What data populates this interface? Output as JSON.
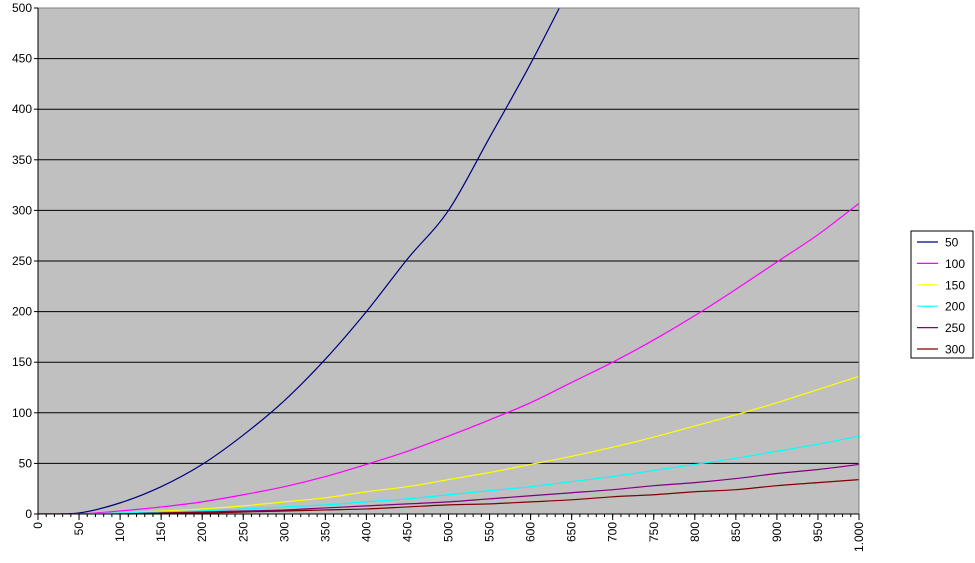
{
  "chart_data": {
    "type": "line",
    "title": "",
    "xlabel": "",
    "ylabel": "",
    "xlim": [
      0,
      1000
    ],
    "ylim": [
      0,
      500
    ],
    "y_ticks": [
      0,
      50,
      100,
      150,
      200,
      250,
      300,
      350,
      400,
      450,
      500
    ],
    "y_tick_labels": [
      "0",
      "50",
      "100",
      "150",
      "200",
      "250",
      "300",
      "350",
      "400",
      "450",
      "500"
    ],
    "x_ticks": [
      0,
      50,
      100,
      150,
      200,
      250,
      300,
      350,
      400,
      450,
      500,
      550,
      600,
      650,
      700,
      750,
      800,
      850,
      900,
      950,
      1000
    ],
    "x_tick_labels": [
      "0",
      "50",
      "100",
      "150",
      "200",
      "250",
      "300",
      "350",
      "400",
      "450",
      "500",
      "550",
      "600",
      "650",
      "700",
      "750",
      "800",
      "850",
      "900",
      "950",
      "1.000"
    ],
    "x_minor_step": 10,
    "grid": "horizontal major gridlines",
    "plot_background": "#c0c0c0",
    "legend_position": "right",
    "x": [
      0,
      50,
      100,
      150,
      200,
      250,
      300,
      350,
      400,
      450,
      500,
      550,
      600,
      650,
      700,
      750,
      800,
      850,
      900,
      950,
      1000
    ],
    "series": [
      {
        "name": "50",
        "color": "#000080",
        "values": [
          0,
          1,
          11,
          27,
          49,
          78,
          112,
          153,
          200,
          252,
          300,
          372,
          445,
          524,
          null,
          null,
          null,
          null,
          null,
          null,
          null
        ]
      },
      {
        "name": "100",
        "color": "#ff00ff",
        "values": [
          0,
          0,
          3,
          7,
          12,
          19,
          27,
          37,
          49,
          62,
          77,
          93,
          110,
          130,
          150,
          172,
          196,
          222,
          249,
          276,
          307
        ]
      },
      {
        "name": "150",
        "color": "#ffff00",
        "values": [
          0,
          0,
          1,
          3,
          5,
          8,
          12,
          16,
          22,
          27,
          34,
          41,
          49,
          57,
          66,
          76,
          87,
          98,
          110,
          123,
          136
        ]
      },
      {
        "name": "200",
        "color": "#00ffff",
        "values": [
          0,
          0,
          1,
          2,
          3,
          5,
          7,
          9,
          12,
          15,
          19,
          23,
          27,
          32,
          37,
          43,
          49,
          55,
          62,
          69,
          77
        ]
      },
      {
        "name": "250",
        "color": "#800080",
        "values": [
          0,
          0,
          0,
          1,
          2,
          3,
          4,
          6,
          8,
          10,
          12,
          15,
          18,
          21,
          24,
          28,
          31,
          35,
          40,
          44,
          49
        ]
      },
      {
        "name": "300",
        "color": "#800000",
        "values": [
          0,
          0,
          0,
          1,
          1,
          2,
          3,
          4,
          5,
          7,
          9,
          10,
          12,
          14,
          17,
          19,
          22,
          24,
          28,
          31,
          34
        ]
      }
    ]
  }
}
